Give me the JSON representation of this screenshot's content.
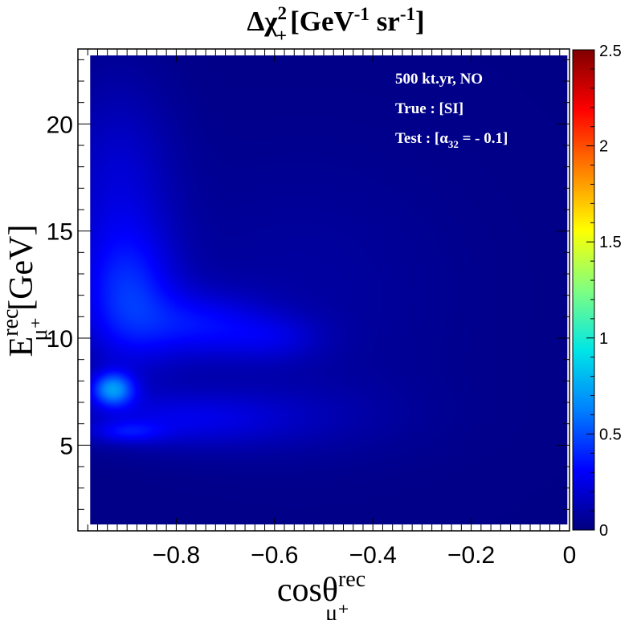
{
  "chart_data": {
    "type": "heatmap",
    "title": {
      "prefix": "Δχ",
      "sup": "2",
      "sub": "+",
      "units": "[GeV",
      "units_sup1": "-1",
      "units_mid": " sr",
      "units_sup2": "-1",
      "units_end": "]"
    },
    "xlabel": {
      "main": "cosθ",
      "sup": "rec",
      "sub": "μ⁺"
    },
    "ylabel": {
      "main": "E",
      "sup": "rec",
      "sub": "μ⁺",
      "units": "[GeV]"
    },
    "x_range": [
      -1.0,
      0.0
    ],
    "y_range": [
      1.0,
      23.5
    ],
    "z_range": [
      0,
      2.5
    ],
    "x_ticks": [
      {
        "value": -0.8,
        "label": "−0.8"
      },
      {
        "value": -0.6,
        "label": "−0.6"
      },
      {
        "value": -0.4,
        "label": "−0.4"
      },
      {
        "value": -0.2,
        "label": "−0.2"
      },
      {
        "value": 0.0,
        "label": "0"
      }
    ],
    "y_ticks": [
      {
        "value": 5,
        "label": "5"
      },
      {
        "value": 10,
        "label": "10"
      },
      {
        "value": 15,
        "label": "15"
      },
      {
        "value": 20,
        "label": "20"
      }
    ],
    "z_ticks": [
      {
        "value": 0,
        "label": "0"
      },
      {
        "value": 0.5,
        "label": "0.5"
      },
      {
        "value": 1,
        "label": "1"
      },
      {
        "value": 1.5,
        "label": "1.5"
      },
      {
        "value": 2,
        "label": "2"
      },
      {
        "value": 2.5,
        "label": "2.5"
      }
    ],
    "annotations": {
      "line1": "500 kt.yr,  NO",
      "line2": "True : [SI]",
      "line3_prefix": "Test  : [α",
      "line3_sub": "32",
      "line3_suffix": " = - 0.1]"
    },
    "data_extent": {
      "x": [
        -0.975,
        -0.005
      ],
      "y": [
        1.3,
        23.2
      ]
    },
    "colormap": [
      "#00007f",
      "#0000ff",
      "#0080ff",
      "#00e6e6",
      "#80ff80",
      "#ffff00",
      "#ff8000",
      "#ff0000",
      "#7f0000"
    ],
    "background_value": 0.02,
    "features": [
      {
        "name": "hotspot",
        "x": -0.93,
        "y": 7.6,
        "sx": 0.03,
        "sy": 0.55,
        "z": 0.6
      },
      {
        "name": "secondary-blob",
        "x": -0.9,
        "y": 5.6,
        "sx": 0.05,
        "sy": 0.35,
        "z": 0.2
      },
      {
        "name": "band-upper-left",
        "x": -0.9,
        "y": 11.8,
        "sx": 0.07,
        "sy": 2.2,
        "z": 0.33
      },
      {
        "name": "band-upper-right",
        "x": -0.75,
        "y": 10.6,
        "sx": 0.09,
        "sy": 1.1,
        "z": 0.25
      },
      {
        "name": "band-tail",
        "x": -0.6,
        "y": 10.0,
        "sx": 0.07,
        "sy": 0.8,
        "z": 0.14
      },
      {
        "name": "high-energy-wing",
        "x": -0.92,
        "y": 17.0,
        "sx": 0.08,
        "sy": 3.5,
        "z": 0.18
      },
      {
        "name": "lower-band",
        "x": -0.8,
        "y": 6.2,
        "sx": 0.15,
        "sy": 0.9,
        "z": 0.18
      },
      {
        "name": "lower-wide",
        "x": -0.6,
        "y": 6.3,
        "sx": 0.2,
        "sy": 1.3,
        "z": 0.07
      },
      {
        "name": "broad-diagonal",
        "x": -0.55,
        "y": 12.0,
        "sx": 0.22,
        "sy": 4.5,
        "z": 0.06
      }
    ]
  }
}
